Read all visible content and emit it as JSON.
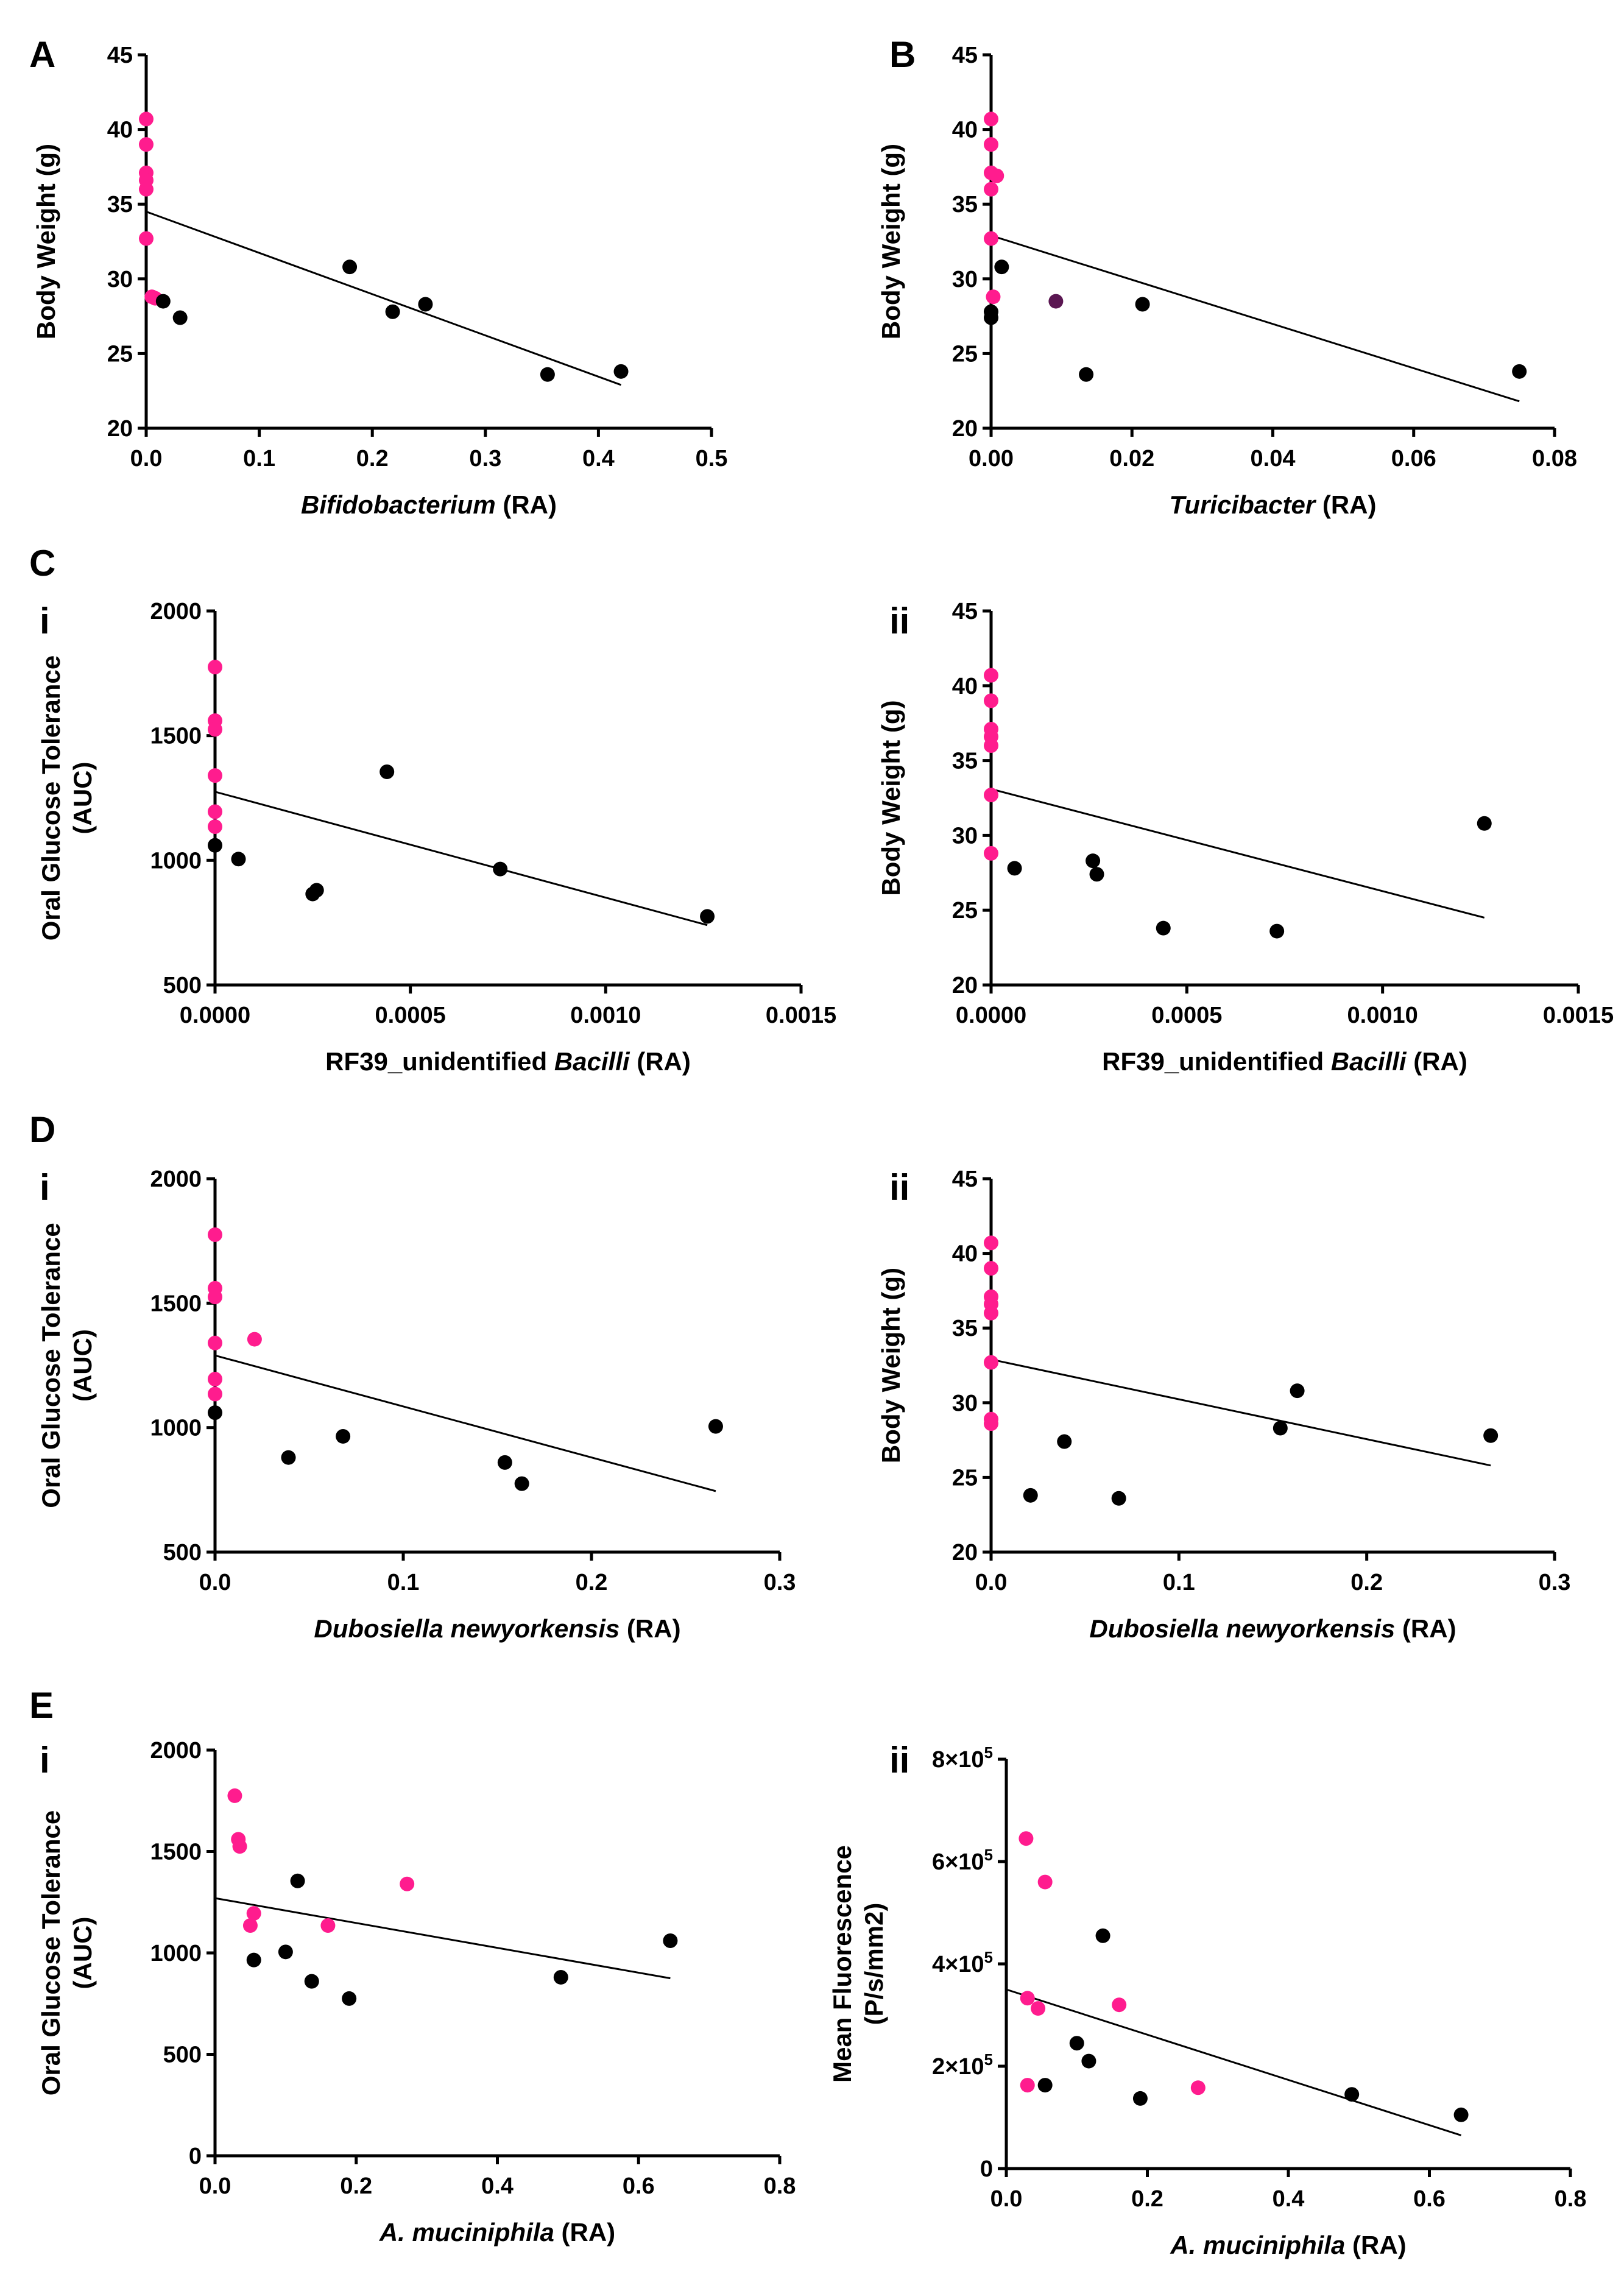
{
  "colors": {
    "pink": "#ff1c8e",
    "black": "#000000",
    "purple": "#5b1752",
    "fit": "#000000"
  },
  "chart_data": [
    {
      "id": "A",
      "panel_label": "A",
      "sub_label": "",
      "type": "scatter",
      "xlabel": [
        {
          "text": "Bifidobacterium",
          "italic": true
        },
        {
          "text": " (RA)",
          "italic": false
        }
      ],
      "ylabel": [
        "Body Weight (g)"
      ],
      "xlim": [
        0,
        0.5
      ],
      "ylim": [
        20,
        45
      ],
      "xticks": [
        {
          "v": 0,
          "t": "0.0"
        },
        {
          "v": 0.1,
          "t": "0.1"
        },
        {
          "v": 0.2,
          "t": "0.2"
        },
        {
          "v": 0.3,
          "t": "0.3"
        },
        {
          "v": 0.4,
          "t": "0.4"
        },
        {
          "v": 0.5,
          "t": "0.5"
        }
      ],
      "yticks": [
        {
          "v": 20,
          "t": "20"
        },
        {
          "v": 25,
          "t": "25"
        },
        {
          "v": 30,
          "t": "30"
        },
        {
          "v": 35,
          "t": "35"
        },
        {
          "v": 40,
          "t": "40"
        },
        {
          "v": 45,
          "t": "45"
        }
      ],
      "series": [
        {
          "name": "pink",
          "color": "pink",
          "points": [
            [
              0,
              40.7
            ],
            [
              0,
              39
            ],
            [
              0,
              37.1
            ],
            [
              0,
              36.6
            ],
            [
              0,
              36
            ],
            [
              0,
              32.7
            ],
            [
              0.005,
              28.8
            ],
            [
              0.008,
              28.7
            ]
          ]
        },
        {
          "name": "black",
          "color": "black",
          "points": [
            [
              0.015,
              28.5
            ],
            [
              0.03,
              27.4
            ],
            [
              0.18,
              30.8
            ],
            [
              0.218,
              27.8
            ],
            [
              0.247,
              28.3
            ],
            [
              0.355,
              23.6
            ],
            [
              0.42,
              23.8
            ]
          ]
        }
      ],
      "fit": {
        "x1": 0,
        "y1": 34.5,
        "x2": 0.42,
        "y2": 22.9
      }
    },
    {
      "id": "B",
      "panel_label": "B",
      "sub_label": "",
      "type": "scatter",
      "xlabel": [
        {
          "text": "Turicibacter",
          "italic": true
        },
        {
          "text": " (RA)",
          "italic": false
        }
      ],
      "ylabel": [
        "Body Weight (g)"
      ],
      "xlim": [
        0,
        0.08
      ],
      "ylim": [
        20,
        45
      ],
      "xticks": [
        {
          "v": 0,
          "t": "0.00"
        },
        {
          "v": 0.02,
          "t": "0.02"
        },
        {
          "v": 0.04,
          "t": "0.04"
        },
        {
          "v": 0.06,
          "t": "0.06"
        },
        {
          "v": 0.08,
          "t": "0.08"
        }
      ],
      "yticks": [
        {
          "v": 20,
          "t": "20"
        },
        {
          "v": 25,
          "t": "25"
        },
        {
          "v": 30,
          "t": "30"
        },
        {
          "v": 35,
          "t": "35"
        },
        {
          "v": 40,
          "t": "40"
        },
        {
          "v": 45,
          "t": "45"
        }
      ],
      "series": [
        {
          "name": "pink",
          "color": "pink",
          "points": [
            [
              0,
              40.7
            ],
            [
              0,
              39
            ],
            [
              0,
              37.1
            ],
            [
              0.0008,
              36.9
            ],
            [
              0,
              36
            ],
            [
              0,
              32.7
            ],
            [
              0.0003,
              28.8
            ]
          ]
        },
        {
          "name": "black",
          "color": "black",
          "points": [
            [
              0,
              27.8
            ],
            [
              0,
              27.4
            ],
            [
              0.0015,
              30.8
            ],
            [
              0.0135,
              23.6
            ],
            [
              0.0215,
              28.3
            ],
            [
              0.075,
              23.8
            ]
          ]
        },
        {
          "name": "purple",
          "color": "purple",
          "points": [
            [
              0.0092,
              28.5
            ]
          ]
        }
      ],
      "fit": {
        "x1": 0,
        "y1": 32.9,
        "x2": 0.075,
        "y2": 21.8
      }
    },
    {
      "id": "C-i",
      "panel_label": "C",
      "sub_label": "i",
      "type": "scatter",
      "xlabel": [
        {
          "text": "RF39_unidentified ",
          "italic": false
        },
        {
          "text": "Bacilli",
          "italic": true
        },
        {
          "text": " (RA)",
          "italic": false
        }
      ],
      "ylabel": [
        "Oral Glucose Tolerance",
        "(AUC)"
      ],
      "xlim": [
        0,
        0.0015
      ],
      "ylim": [
        500,
        2000
      ],
      "xticks": [
        {
          "v": 0,
          "t": "0.0000"
        },
        {
          "v": 0.0005,
          "t": "0.0005"
        },
        {
          "v": 0.001,
          "t": "0.0010"
        },
        {
          "v": 0.0015,
          "t": "0.0015"
        }
      ],
      "yticks": [
        {
          "v": 500,
          "t": "500"
        },
        {
          "v": 1000,
          "t": "1000"
        },
        {
          "v": 1500,
          "t": "1500"
        },
        {
          "v": 2000,
          "t": "2000"
        }
      ],
      "series": [
        {
          "name": "pink",
          "color": "pink",
          "points": [
            [
              0,
              1775
            ],
            [
              0,
              1560
            ],
            [
              0,
              1525
            ],
            [
              0,
              1340
            ],
            [
              0,
              1195
            ],
            [
              0,
              1135
            ]
          ]
        },
        {
          "name": "black",
          "color": "black",
          "points": [
            [
              0,
              1060
            ],
            [
              6e-05,
              1005
            ],
            [
              0.00025,
              865
            ],
            [
              0.00026,
              880
            ],
            [
              0.00044,
              1355
            ],
            [
              0.00073,
              965
            ],
            [
              0.00126,
              775
            ]
          ]
        }
      ],
      "fit": {
        "x1": 0,
        "y1": 1275,
        "x2": 0.00126,
        "y2": 740
      }
    },
    {
      "id": "C-ii",
      "panel_label": "",
      "sub_label": "ii",
      "type": "scatter",
      "xlabel": [
        {
          "text": "RF39_unidentified ",
          "italic": false
        },
        {
          "text": "Bacilli",
          "italic": true
        },
        {
          "text": " (RA)",
          "italic": false
        }
      ],
      "ylabel": [
        "Body Weight (g)"
      ],
      "xlim": [
        0,
        0.0015
      ],
      "ylim": [
        20,
        45
      ],
      "xticks": [
        {
          "v": 0,
          "t": "0.0000"
        },
        {
          "v": 0.0005,
          "t": "0.0005"
        },
        {
          "v": 0.001,
          "t": "0.0010"
        },
        {
          "v": 0.0015,
          "t": "0.0015"
        }
      ],
      "yticks": [
        {
          "v": 20,
          "t": "20"
        },
        {
          "v": 25,
          "t": "25"
        },
        {
          "v": 30,
          "t": "30"
        },
        {
          "v": 35,
          "t": "35"
        },
        {
          "v": 40,
          "t": "40"
        },
        {
          "v": 45,
          "t": "45"
        }
      ],
      "series": [
        {
          "name": "pink",
          "color": "pink",
          "points": [
            [
              0,
              40.7
            ],
            [
              0,
              39
            ],
            [
              0,
              37.1
            ],
            [
              0,
              36.6
            ],
            [
              0,
              36
            ],
            [
              0,
              32.7
            ],
            [
              0,
              28.8
            ]
          ]
        },
        {
          "name": "black",
          "color": "black",
          "points": [
            [
              6e-05,
              27.8
            ],
            [
              0.00026,
              28.3
            ],
            [
              0.00027,
              27.4
            ],
            [
              0.00044,
              23.8
            ],
            [
              0.00073,
              23.6
            ],
            [
              0.00126,
              30.8
            ]
          ]
        }
      ],
      "fit": {
        "x1": 0,
        "y1": 33.1,
        "x2": 0.00126,
        "y2": 24.5
      }
    },
    {
      "id": "D-i",
      "panel_label": "D",
      "sub_label": "i",
      "type": "scatter",
      "xlabel": [
        {
          "text": "Dubosiella newyorkensis",
          "italic": true
        },
        {
          "text": " (RA)",
          "italic": false
        }
      ],
      "ylabel": [
        "Oral Glucose Tolerance",
        "(AUC)"
      ],
      "xlim": [
        0,
        0.3
      ],
      "ylim": [
        500,
        2000
      ],
      "xticks": [
        {
          "v": 0,
          "t": "0.0"
        },
        {
          "v": 0.1,
          "t": "0.1"
        },
        {
          "v": 0.2,
          "t": "0.2"
        },
        {
          "v": 0.3,
          "t": "0.3"
        }
      ],
      "yticks": [
        {
          "v": 500,
          "t": "500"
        },
        {
          "v": 1000,
          "t": "1000"
        },
        {
          "v": 1500,
          "t": "1500"
        },
        {
          "v": 2000,
          "t": "2000"
        }
      ],
      "series": [
        {
          "name": "pink",
          "color": "pink",
          "points": [
            [
              0,
              1775
            ],
            [
              0,
              1560
            ],
            [
              0,
              1525
            ],
            [
              0,
              1340
            ],
            [
              0,
              1195
            ],
            [
              0,
              1135
            ],
            [
              0.021,
              1355
            ]
          ]
        },
        {
          "name": "black",
          "color": "black",
          "points": [
            [
              0,
              1060
            ],
            [
              0.039,
              880
            ],
            [
              0.068,
              965
            ],
            [
              0.154,
              860
            ],
            [
              0.163,
              775
            ],
            [
              0.266,
              1005
            ]
          ]
        }
      ],
      "fit": {
        "x1": 0,
        "y1": 1290,
        "x2": 0.266,
        "y2": 745
      }
    },
    {
      "id": "D-ii",
      "panel_label": "",
      "sub_label": "ii",
      "type": "scatter",
      "xlabel": [
        {
          "text": "Dubosiella newyorkensis",
          "italic": true
        },
        {
          "text": " (RA)",
          "italic": false
        }
      ],
      "ylabel": [
        "Body Weight (g)"
      ],
      "xlim": [
        0,
        0.3
      ],
      "ylim": [
        20,
        45
      ],
      "xticks": [
        {
          "v": 0,
          "t": "0.0"
        },
        {
          "v": 0.1,
          "t": "0.1"
        },
        {
          "v": 0.2,
          "t": "0.2"
        },
        {
          "v": 0.3,
          "t": "0.3"
        }
      ],
      "yticks": [
        {
          "v": 20,
          "t": "20"
        },
        {
          "v": 25,
          "t": "25"
        },
        {
          "v": 30,
          "t": "30"
        },
        {
          "v": 35,
          "t": "35"
        },
        {
          "v": 40,
          "t": "40"
        },
        {
          "v": 45,
          "t": "45"
        }
      ],
      "series": [
        {
          "name": "pink",
          "color": "pink",
          "points": [
            [
              0,
              40.7
            ],
            [
              0,
              39
            ],
            [
              0,
              37.1
            ],
            [
              0,
              36.6
            ],
            [
              0,
              36
            ],
            [
              0,
              32.7
            ],
            [
              0,
              28.9
            ],
            [
              0,
              28.6
            ]
          ]
        },
        {
          "name": "black",
          "color": "black",
          "points": [
            [
              0.021,
              23.8
            ],
            [
              0.039,
              27.4
            ],
            [
              0.068,
              23.6
            ],
            [
              0.154,
              28.3
            ],
            [
              0.163,
              30.8
            ],
            [
              0.266,
              27.8
            ]
          ]
        }
      ],
      "fit": {
        "x1": 0,
        "y1": 32.9,
        "x2": 0.266,
        "y2": 25.8
      }
    },
    {
      "id": "E-i",
      "panel_label": "E",
      "sub_label": "i",
      "type": "scatter",
      "xlabel": [
        {
          "text": "A. muciniphila",
          "italic": true
        },
        {
          "text": " (RA)",
          "italic": false
        }
      ],
      "ylabel": [
        "Oral Glucose Tolerance",
        "(AUC)"
      ],
      "xlim": [
        0,
        0.8
      ],
      "ylim": [
        0,
        2000
      ],
      "xticks": [
        {
          "v": 0,
          "t": "0.0"
        },
        {
          "v": 0.2,
          "t": "0.2"
        },
        {
          "v": 0.4,
          "t": "0.4"
        },
        {
          "v": 0.6,
          "t": "0.6"
        },
        {
          "v": 0.8,
          "t": "0.8"
        }
      ],
      "yticks": [
        {
          "v": 0,
          "t": "0"
        },
        {
          "v": 500,
          "t": "500"
        },
        {
          "v": 1000,
          "t": "1000"
        },
        {
          "v": 1500,
          "t": "1500"
        },
        {
          "v": 2000,
          "t": "2000"
        }
      ],
      "series": [
        {
          "name": "pink",
          "color": "pink",
          "points": [
            [
              0.028,
              1775
            ],
            [
              0.033,
              1560
            ],
            [
              0.035,
              1525
            ],
            [
              0.05,
              1135
            ],
            [
              0.055,
              1195
            ],
            [
              0.16,
              1135
            ],
            [
              0.272,
              1340
            ]
          ]
        },
        {
          "name": "black",
          "color": "black",
          "points": [
            [
              0.055,
              965
            ],
            [
              0.1,
              1005
            ],
            [
              0.117,
              1355
            ],
            [
              0.137,
              860
            ],
            [
              0.19,
              775
            ],
            [
              0.49,
              880
            ],
            [
              0.645,
              1060
            ]
          ]
        }
      ],
      "fit": {
        "x1": 0,
        "y1": 1270,
        "x2": 0.645,
        "y2": 875
      }
    },
    {
      "id": "E-ii",
      "panel_label": "",
      "sub_label": "ii",
      "type": "scatter",
      "xlabel": [
        {
          "text": "A. muciniphila",
          "italic": true
        },
        {
          "text": " (RA)",
          "italic": false
        }
      ],
      "ylabel": [
        "Mean Fluorescence",
        "(P/s/mm2)"
      ],
      "xlim": [
        0,
        0.8
      ],
      "ylim": [
        0,
        800000
      ],
      "xticks": [
        {
          "v": 0,
          "t": "0.0"
        },
        {
          "v": 0.2,
          "t": "0.2"
        },
        {
          "v": 0.4,
          "t": "0.4"
        },
        {
          "v": 0.6,
          "t": "0.6"
        },
        {
          "v": 0.8,
          "t": "0.8"
        }
      ],
      "yticks": [
        {
          "v": 0,
          "t": "0"
        },
        {
          "v": 200000,
          "t": "2×10",
          "sup": "5"
        },
        {
          "v": 400000,
          "t": "4×10",
          "sup": "5"
        },
        {
          "v": 600000,
          "t": "6×10",
          "sup": "5"
        },
        {
          "v": 800000,
          "t": "8×10",
          "sup": "5"
        }
      ],
      "series": [
        {
          "name": "pink",
          "color": "pink",
          "points": [
            [
              0.028,
              645000
            ],
            [
              0.055,
              560000
            ],
            [
              0.03,
              333000
            ],
            [
              0.045,
              313000
            ],
            [
              0.03,
              163000
            ],
            [
              0.16,
              320000
            ],
            [
              0.272,
              158000
            ]
          ]
        },
        {
          "name": "black",
          "color": "black",
          "points": [
            [
              0.055,
              163000
            ],
            [
              0.1,
              245000
            ],
            [
              0.117,
              210000
            ],
            [
              0.137,
              455000
            ],
            [
              0.19,
              137000
            ],
            [
              0.49,
              145000
            ],
            [
              0.645,
              105000
            ]
          ]
        }
      ],
      "fit": {
        "x1": 0,
        "y1": 350000,
        "x2": 0.645,
        "y2": 65000
      }
    }
  ]
}
